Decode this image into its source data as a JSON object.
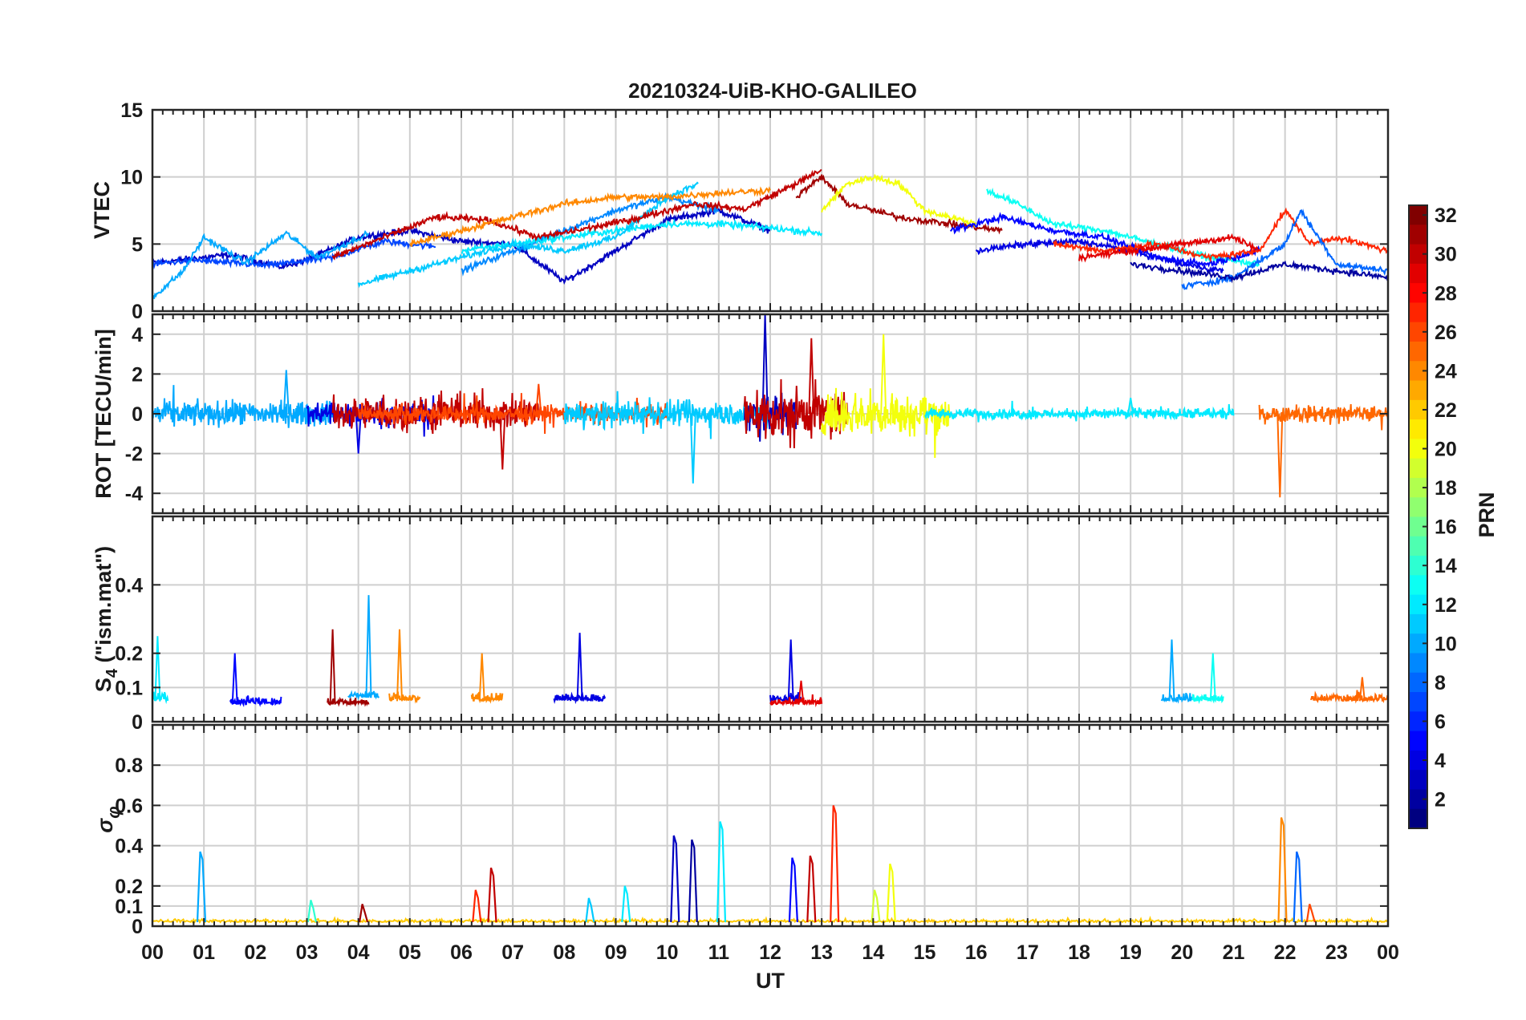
{
  "chart_data": {
    "type": "line",
    "title": "20210324-UiB-KHO-GALILEO",
    "xlabel": "UT",
    "x_ticks": [
      "00",
      "01",
      "02",
      "03",
      "04",
      "05",
      "06",
      "07",
      "08",
      "09",
      "10",
      "11",
      "12",
      "13",
      "14",
      "15",
      "16",
      "17",
      "18",
      "19",
      "20",
      "21",
      "22",
      "23",
      "00"
    ],
    "xlim_hours": [
      0,
      24
    ],
    "grid": true,
    "colorbar": {
      "label": "PRN",
      "range": [
        1,
        32
      ],
      "ticks": [
        "32",
        "30",
        "28",
        "26",
        "24",
        "22",
        "20",
        "18",
        "16",
        "14",
        "12",
        "10",
        "8",
        "6",
        "4",
        "2"
      ],
      "colormap": "jet",
      "placement": "right"
    },
    "panels": [
      {
        "name": "vtec",
        "ylabel": "VTEC",
        "ylim": [
          0,
          15
        ],
        "yticks": [
          "15",
          "10",
          "5",
          "0"
        ],
        "series": [
          {
            "prn": 3,
            "points": [
              [
                0.0,
                3.6
              ],
              [
                1.5,
                4.2
              ],
              [
                2.5,
                3.3
              ],
              [
                3.0,
                3.8
              ],
              [
                4.0,
                5.5
              ],
              [
                5.0,
                6.0
              ],
              [
                6.0,
                5.2
              ],
              [
                7.0,
                5.0
              ],
              [
                8.0,
                2.2
              ],
              [
                9.0,
                4.5
              ],
              [
                10.0,
                6.8
              ],
              [
                11.0,
                7.5
              ],
              [
                12.0,
                6.0
              ]
            ]
          },
          {
            "prn": 7,
            "points": [
              [
                0.0,
                3.5
              ],
              [
                0.8,
                3.8
              ],
              [
                2.2,
                3.4
              ],
              [
                3.5,
                4.0
              ],
              [
                4.5,
                5.2
              ],
              [
                5.5,
                4.8
              ]
            ]
          },
          {
            "prn": 10,
            "points": [
              [
                0.0,
                1.0
              ],
              [
                0.6,
                3.0
              ],
              [
                1.0,
                5.5
              ],
              [
                1.8,
                3.6
              ],
              [
                2.6,
                5.8
              ],
              [
                3.2,
                4.0
              ],
              [
                4.2,
                5.8
              ]
            ]
          },
          {
            "prn": 9,
            "points": [
              [
                6.0,
                3.0
              ],
              [
                7.0,
                4.5
              ],
              [
                8.0,
                6.0
              ],
              [
                9.0,
                7.5
              ],
              [
                10.0,
                8.5
              ],
              [
                11.0,
                7.5
              ]
            ]
          },
          {
            "prn": 12,
            "points": [
              [
                6.0,
                4.5
              ],
              [
                7.0,
                5.0
              ],
              [
                8.0,
                5.5
              ],
              [
                9.0,
                6.0
              ],
              [
                10.0,
                6.5
              ],
              [
                11.0,
                6.5
              ],
              [
                12.0,
                6.2
              ],
              [
                13.0,
                5.8
              ]
            ]
          },
          {
            "prn": 11,
            "points": [
              [
                4.0,
                2.0
              ],
              [
                5.0,
                3.0
              ],
              [
                6.0,
                4.0
              ],
              [
                7.0,
                5.0
              ],
              [
                8.0,
                4.5
              ],
              [
                9.0,
                5.5
              ],
              [
                10.0,
                8.5
              ],
              [
                10.6,
                9.5
              ]
            ]
          },
          {
            "prn": 30,
            "points": [
              [
                3.5,
                4.0
              ],
              [
                4.5,
                5.5
              ],
              [
                5.5,
                7.0
              ],
              [
                6.5,
                6.8
              ],
              [
                7.5,
                5.5
              ],
              [
                8.5,
                6.2
              ],
              [
                9.5,
                7.0
              ],
              [
                10.5,
                8.0
              ],
              [
                11.5,
                7.6
              ],
              [
                12.5,
                9.5
              ],
              [
                13.0,
                10.5
              ]
            ]
          },
          {
            "prn": 24,
            "points": [
              [
                5.0,
                5.0
              ],
              [
                6.0,
                6.0
              ],
              [
                7.0,
                7.0
              ],
              [
                8.0,
                8.0
              ],
              [
                9.0,
                8.5
              ],
              [
                10.0,
                8.5
              ],
              [
                11.0,
                8.8
              ],
              [
                12.0,
                9.0
              ]
            ]
          },
          {
            "prn": 31,
            "points": [
              [
                12.5,
                8.5
              ],
              [
                13.0,
                10.0
              ],
              [
                13.5,
                8.0
              ],
              [
                14.5,
                7.0
              ],
              [
                15.5,
                6.5
              ],
              [
                16.5,
                6.0
              ]
            ]
          },
          {
            "prn": 20,
            "points": [
              [
                13.0,
                7.5
              ],
              [
                13.5,
                9.5
              ],
              [
                14.0,
                10.0
              ],
              [
                14.5,
                9.5
              ],
              [
                15.0,
                7.5
              ],
              [
                16.0,
                6.5
              ]
            ]
          },
          {
            "prn": 13,
            "points": [
              [
                16.2,
                9.0
              ],
              [
                16.8,
                8.0
              ],
              [
                17.5,
                6.5
              ],
              [
                18.5,
                6.0
              ],
              [
                19.5,
                5.0
              ],
              [
                20.5,
                4.0
              ],
              [
                21.5,
                3.5
              ]
            ]
          },
          {
            "prn": 4,
            "points": [
              [
                16.0,
                4.5
              ],
              [
                17.0,
                5.0
              ],
              [
                18.0,
                5.2
              ],
              [
                19.0,
                4.5
              ],
              [
                20.0,
                3.5
              ],
              [
                20.8,
                3.0
              ]
            ]
          },
          {
            "prn": 5,
            "points": [
              [
                15.5,
                6.0
              ],
              [
                16.5,
                7.0
              ],
              [
                17.5,
                6.0
              ],
              [
                18.5,
                5.5
              ],
              [
                19.5,
                4.0
              ],
              [
                20.5,
                3.5
              ],
              [
                21.5,
                4.5
              ]
            ]
          },
          {
            "prn": 27,
            "points": [
              [
                17.5,
                5.0
              ],
              [
                18.5,
                4.5
              ],
              [
                19.5,
                5.0
              ],
              [
                20.5,
                4.0
              ],
              [
                21.5,
                4.5
              ],
              [
                22.0,
                7.5
              ],
              [
                22.5,
                5.0
              ],
              [
                23.0,
                5.5
              ],
              [
                24.0,
                4.5
              ]
            ]
          },
          {
            "prn": 8,
            "points": [
              [
                20.0,
                1.8
              ],
              [
                21.0,
                2.5
              ],
              [
                22.0,
                5.0
              ],
              [
                22.3,
                7.5
              ],
              [
                23.0,
                3.5
              ],
              [
                24.0,
                3.0
              ]
            ]
          },
          {
            "prn": 29,
            "points": [
              [
                18.0,
                4.0
              ],
              [
                19.0,
                4.5
              ],
              [
                20.0,
                5.0
              ],
              [
                21.0,
                5.5
              ],
              [
                21.5,
                4.5
              ]
            ]
          },
          {
            "prn": 2,
            "points": [
              [
                19.0,
                3.5
              ],
              [
                20.0,
                3.0
              ],
              [
                21.0,
                2.5
              ],
              [
                22.0,
                3.5
              ],
              [
                23.0,
                3.0
              ],
              [
                24.0,
                2.5
              ]
            ]
          }
        ]
      },
      {
        "name": "rot",
        "ylabel": "ROT [TECU/min]",
        "ylim": [
          -5,
          5
        ],
        "yticks": [
          "4",
          "2",
          "0",
          "-2",
          "-4"
        ],
        "activity": [
          {
            "prn": 10,
            "start": 0.0,
            "end": 3.5,
            "amp": 1.5,
            "peak": [
              2.6,
              2.2
            ]
          },
          {
            "prn": 4,
            "start": 3.0,
            "end": 5.5,
            "amp": 1.5,
            "peak": [
              4.0,
              -2.0
            ]
          },
          {
            "prn": 30,
            "start": 3.5,
            "end": 7.5,
            "amp": 2.0,
            "peak": [
              6.8,
              -2.8
            ]
          },
          {
            "prn": 26,
            "start": 4.0,
            "end": 10.0,
            "amp": 1.0,
            "peak": [
              7.5,
              1.5
            ]
          },
          {
            "prn": 11,
            "start": 8.0,
            "end": 12.0,
            "amp": 1.5,
            "peak": [
              10.5,
              -3.5
            ]
          },
          {
            "prn": 3,
            "start": 11.5,
            "end": 12.5,
            "amp": 2.5,
            "peak": [
              11.9,
              5.0
            ]
          },
          {
            "prn": 30,
            "start": 11.5,
            "end": 13.5,
            "amp": 3.0,
            "peak": [
              12.8,
              3.8
            ]
          },
          {
            "prn": 20,
            "start": 13.0,
            "end": 15.5,
            "amp": 2.5,
            "peak": [
              14.2,
              4.0
            ]
          },
          {
            "prn": 12,
            "start": 15.0,
            "end": 21.0,
            "amp": 0.6,
            "peak": [
              19.0,
              0.8
            ]
          },
          {
            "prn": 25,
            "start": 21.5,
            "end": 24.0,
            "amp": 1.0,
            "peak": [
              21.9,
              -4.2
            ]
          }
        ]
      },
      {
        "name": "s4",
        "ylabel": "S4 (\"ism.mat\")",
        "ylim": [
          0,
          0.6
        ],
        "yticks": [
          "0.4",
          "0.2",
          "0.1",
          "0"
        ],
        "activity": [
          {
            "prn": 12,
            "start": 0.0,
            "end": 0.3,
            "base": 0.06,
            "peak": [
              0.1,
              0.25
            ]
          },
          {
            "prn": 5,
            "start": 1.5,
            "end": 2.5,
            "base": 0.05,
            "peak": [
              1.6,
              0.2
            ]
          },
          {
            "prn": 31,
            "start": 3.4,
            "end": 4.2,
            "base": 0.05,
            "peak": [
              3.5,
              0.27
            ]
          },
          {
            "prn": 10,
            "start": 3.8,
            "end": 4.4,
            "base": 0.07,
            "peak": [
              4.2,
              0.37
            ]
          },
          {
            "prn": 24,
            "start": 4.6,
            "end": 5.2,
            "base": 0.06,
            "peak": [
              4.8,
              0.27
            ]
          },
          {
            "prn": 24,
            "start": 6.2,
            "end": 6.8,
            "base": 0.06,
            "peak": [
              6.4,
              0.2
            ]
          },
          {
            "prn": 4,
            "start": 7.8,
            "end": 8.8,
            "base": 0.06,
            "peak": [
              8.3,
              0.26
            ]
          },
          {
            "prn": 4,
            "start": 12.0,
            "end": 12.6,
            "base": 0.06,
            "peak": [
              12.4,
              0.24
            ]
          },
          {
            "prn": 29,
            "start": 12.0,
            "end": 13.0,
            "base": 0.05,
            "peak": [
              12.6,
              0.12
            ]
          },
          {
            "prn": 10,
            "start": 19.6,
            "end": 20.2,
            "base": 0.06,
            "peak": [
              19.8,
              0.24
            ]
          },
          {
            "prn": 13,
            "start": 20.2,
            "end": 20.8,
            "base": 0.06,
            "peak": [
              20.6,
              0.2
            ]
          },
          {
            "prn": 25,
            "start": 22.5,
            "end": 24.0,
            "base": 0.06,
            "peak": [
              23.5,
              0.13
            ]
          }
        ]
      },
      {
        "name": "sigma_phi",
        "ylabel": "σφ",
        "ylim": [
          0,
          1.0
        ],
        "yticks": [
          "0.8",
          "0.6",
          "0.4",
          "0.2",
          "0.1",
          "0"
        ],
        "spikes": [
          {
            "prn": 10,
            "x": 0.95,
            "y": 0.37
          },
          {
            "prn": 14,
            "x": 3.1,
            "y": 0.13
          },
          {
            "prn": 31,
            "x": 4.1,
            "y": 0.11
          },
          {
            "prn": 30,
            "x": 6.6,
            "y": 0.29
          },
          {
            "prn": 27,
            "x": 6.3,
            "y": 0.18
          },
          {
            "prn": 11,
            "x": 8.5,
            "y": 0.14
          },
          {
            "prn": 12,
            "x": 9.2,
            "y": 0.2
          },
          {
            "prn": 3,
            "x": 10.15,
            "y": 0.45
          },
          {
            "prn": 2,
            "x": 10.5,
            "y": 0.43
          },
          {
            "prn": 12,
            "x": 11.05,
            "y": 0.52
          },
          {
            "prn": 5,
            "x": 12.45,
            "y": 0.34
          },
          {
            "prn": 30,
            "x": 12.8,
            "y": 0.35
          },
          {
            "prn": 27,
            "x": 13.25,
            "y": 0.6
          },
          {
            "prn": 20,
            "x": 14.35,
            "y": 0.31
          },
          {
            "prn": 19,
            "x": 14.05,
            "y": 0.18
          },
          {
            "prn": 24,
            "x": 21.95,
            "y": 0.54
          },
          {
            "prn": 8,
            "x": 22.25,
            "y": 0.37
          },
          {
            "prn": 26,
            "x": 22.5,
            "y": 0.11
          }
        ]
      }
    ]
  }
}
